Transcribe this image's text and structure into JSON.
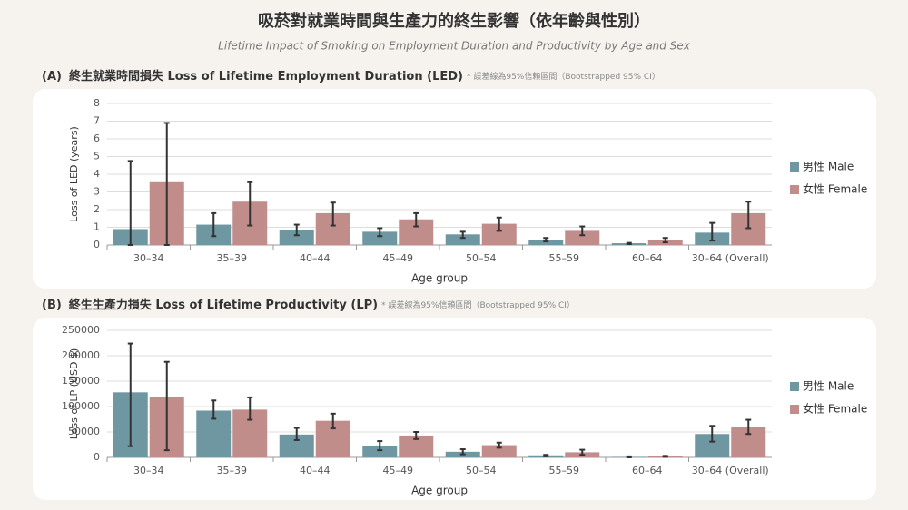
{
  "title": "吸菸對就業時間與生產力的終生影響（依年齡與性別）",
  "subtitle": "Lifetime Impact of Smoking on Employment Duration and Productivity by Age and Sex",
  "chart_data": [
    {
      "type": "bar",
      "panel": "(A)",
      "title": "終生就業時間損失 Loss of Lifetime Employment Duration (LED)",
      "note": "* 誤差線為95%信賴區間（Bootstrapped 95% CI）",
      "x_label": "Age group",
      "y_label": "Loss of LED (years)",
      "categories": [
        "30–34",
        "35–39",
        "40–44",
        "45–49",
        "50–54",
        "55–59",
        "60–64",
        "30–64 (Overall)"
      ],
      "series": [
        {
          "name": "男性 Male",
          "color": "#6f97a1",
          "values": [
            0.9,
            1.15,
            0.85,
            0.75,
            0.6,
            0.3,
            0.1,
            0.7
          ],
          "ci_low": [
            0,
            0.5,
            0.55,
            0.5,
            0.4,
            0.2,
            0.05,
            0.25
          ],
          "ci_high": [
            4.75,
            1.8,
            1.15,
            0.95,
            0.75,
            0.4,
            0.12,
            1.25
          ]
        },
        {
          "name": "女性 Female",
          "color": "#c18d8b",
          "values": [
            3.55,
            2.45,
            1.8,
            1.45,
            1.2,
            0.8,
            0.3,
            1.8
          ],
          "ci_low": [
            0,
            1.1,
            1.1,
            1.05,
            0.8,
            0.55,
            0.15,
            0.95
          ],
          "ci_high": [
            6.9,
            3.55,
            2.4,
            1.8,
            1.55,
            1.05,
            0.4,
            2.45
          ]
        }
      ],
      "ylim": [
        0,
        8
      ],
      "yticks": [
        0,
        1,
        2,
        3,
        4,
        5,
        6,
        7,
        8
      ],
      "grid": true
    },
    {
      "type": "bar",
      "panel": "(B)",
      "title": "終生生產力損失 Loss of Lifetime Productivity (LP)",
      "note": "* 誤差線為95%信賴區間（Bootstrapped 95% CI）",
      "x_label": "Age group",
      "y_label": "Loss of LP (USD $)",
      "categories": [
        "30–34",
        "35–39",
        "40–44",
        "45–49",
        "50–54",
        "55–59",
        "60–64",
        "30–64 (Overall)"
      ],
      "series": [
        {
          "name": "男性 Male",
          "color": "#6f97a1",
          "values": [
            128000,
            92000,
            45000,
            23000,
            11000,
            4000,
            1000,
            46000
          ],
          "ci_low": [
            22000,
            76000,
            34000,
            14000,
            6000,
            2000,
            0,
            31000
          ],
          "ci_high": [
            224000,
            112000,
            58000,
            32000,
            16000,
            5000,
            2000,
            62000
          ]
        },
        {
          "name": "女性 Female",
          "color": "#c18d8b",
          "values": [
            118000,
            94000,
            72000,
            43000,
            24000,
            10000,
            2000,
            60000
          ],
          "ci_low": [
            14000,
            74000,
            57000,
            36000,
            19000,
            5000,
            1000,
            46000
          ],
          "ci_high": [
            188000,
            118000,
            86000,
            50000,
            29000,
            15000,
            3000,
            74000
          ]
        }
      ],
      "ylim": [
        0,
        250000
      ],
      "yticks": [
        0,
        50000,
        100000,
        150000,
        200000,
        250000
      ],
      "grid": true
    }
  ]
}
